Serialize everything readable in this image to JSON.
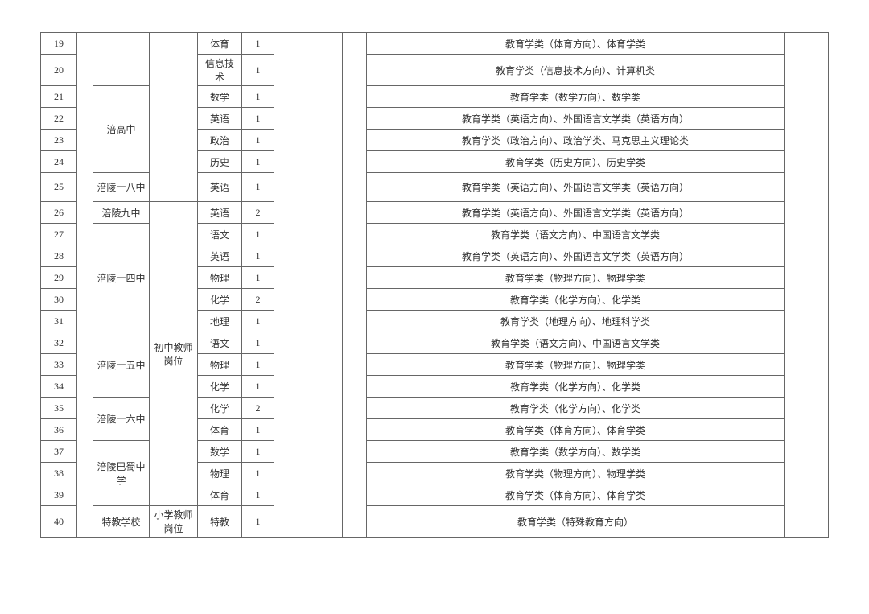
{
  "schools": {
    "fugao": "涪高中",
    "fuling18": "涪陵十八中",
    "fuling9": "涪陵九中",
    "fuling14": "涪陵十四中",
    "fuling15": "涪陵十五中",
    "fuling16": "涪陵十六中",
    "fulingbashu": "涪陵巴蜀中学",
    "tejiao": "特教学校"
  },
  "positions": {
    "chuzhong": "初中教师岗位",
    "xiaoxue": "小学教师岗位"
  },
  "rows": [
    {
      "num": "19",
      "subject": "体育",
      "count": "1",
      "desc": "教育学类（体育方向）、体育学类"
    },
    {
      "num": "20",
      "subject": "信息技术",
      "count": "1",
      "desc": "教育学类（信息技术方向）、计算机类"
    },
    {
      "num": "21",
      "subject": "数学",
      "count": "1",
      "desc": "教育学类（数学方向）、数学类"
    },
    {
      "num": "22",
      "subject": "英语",
      "count": "1",
      "desc": "教育学类（英语方向）、外国语言文学类（英语方向）"
    },
    {
      "num": "23",
      "subject": "政治",
      "count": "1",
      "desc": "教育学类（政治方向）、政治学类、马克思主义理论类"
    },
    {
      "num": "24",
      "subject": "历史",
      "count": "1",
      "desc": "教育学类（历史方向）、历史学类"
    },
    {
      "num": "25",
      "subject": "英语",
      "count": "1",
      "desc": "教育学类（英语方向）、外国语言文学类（英语方向）"
    },
    {
      "num": "26",
      "subject": "英语",
      "count": "2",
      "desc": "教育学类（英语方向）、外国语言文学类（英语方向）"
    },
    {
      "num": "27",
      "subject": "语文",
      "count": "1",
      "desc": "教育学类（语文方向）、中国语言文学类"
    },
    {
      "num": "28",
      "subject": "英语",
      "count": "1",
      "desc": "教育学类（英语方向）、外国语言文学类（英语方向）"
    },
    {
      "num": "29",
      "subject": "物理",
      "count": "1",
      "desc": "教育学类（物理方向）、物理学类"
    },
    {
      "num": "30",
      "subject": "化学",
      "count": "2",
      "desc": "教育学类（化学方向）、化学类"
    },
    {
      "num": "31",
      "subject": "地理",
      "count": "1",
      "desc": "教育学类（地理方向）、地理科学类"
    },
    {
      "num": "32",
      "subject": "语文",
      "count": "1",
      "desc": "教育学类（语文方向）、中国语言文学类"
    },
    {
      "num": "33",
      "subject": "物理",
      "count": "1",
      "desc": "教育学类（物理方向）、物理学类"
    },
    {
      "num": "34",
      "subject": "化学",
      "count": "1",
      "desc": "教育学类（化学方向）、化学类"
    },
    {
      "num": "35",
      "subject": "化学",
      "count": "2",
      "desc": "教育学类（化学方向）、化学类"
    },
    {
      "num": "36",
      "subject": "体育",
      "count": "1",
      "desc": "教育学类（体育方向）、体育学类"
    },
    {
      "num": "37",
      "subject": "数学",
      "count": "1",
      "desc": "教育学类（数学方向）、数学类"
    },
    {
      "num": "38",
      "subject": "物理",
      "count": "1",
      "desc": "教育学类（物理方向）、物理学类"
    },
    {
      "num": "39",
      "subject": "体育",
      "count": "1",
      "desc": "教育学类（体育方向）、体育学类"
    },
    {
      "num": "40",
      "subject": "特教",
      "count": "1",
      "desc": "教育学类（特殊教育方向）"
    }
  ]
}
